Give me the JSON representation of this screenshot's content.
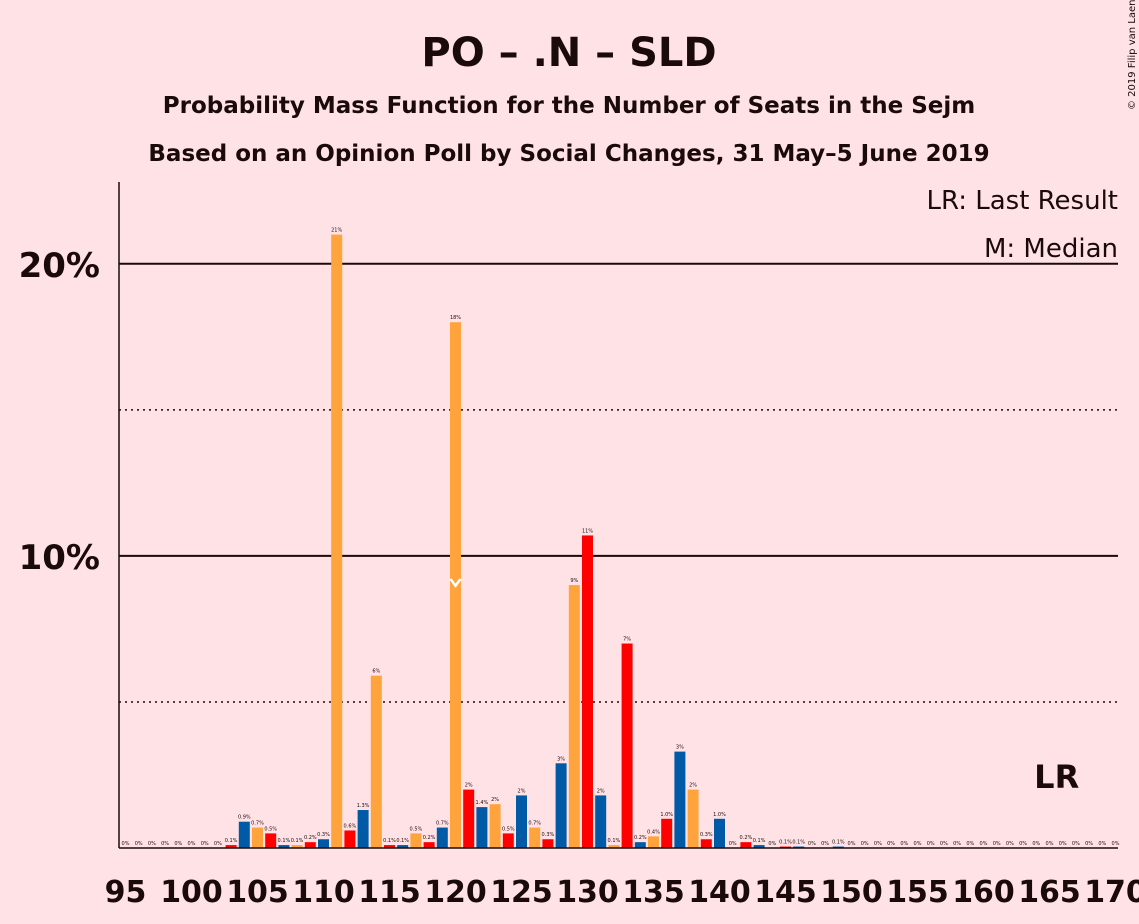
{
  "chart_data": {
    "type": "bar",
    "title": "PO – .N – SLD",
    "subtitle": "Probability Mass Function for the Number of Seats in the Sejm",
    "subtitle2": "Based on an Opinion Poll by Social Changes, 31 May–5 June 2019",
    "copyright": "© 2019 Filip van Laenen",
    "legend": [
      "LR: Last Result",
      "M: Median"
    ],
    "last_result_label": "LR",
    "last_result_seat": 166,
    "median_seat": 120,
    "ylim": [
      0,
      22.8
    ],
    "yticks": [
      {
        "value": 10,
        "label": "10%"
      },
      {
        "value": 20,
        "label": "20%"
      }
    ],
    "dotted_gridlines": [
      5,
      15
    ],
    "xlim": [
      95,
      170
    ],
    "xticks": [
      95,
      100,
      105,
      110,
      115,
      120,
      125,
      130,
      135,
      140,
      145,
      150,
      155,
      160,
      165,
      170
    ],
    "colors": {
      "blue": "#005AA6",
      "orange": "#FFA33D",
      "red": "#FF0000",
      "median_mark": "#FFFFFF",
      "background": "#FFE2E6"
    },
    "color_cycle": [
      "blue",
      "orange",
      "red"
    ],
    "bars": [
      {
        "seats": 95,
        "value": 0,
        "label": "0%"
      },
      {
        "seats": 96,
        "value": 0,
        "label": "0%"
      },
      {
        "seats": 97,
        "value": 0,
        "label": "0%"
      },
      {
        "seats": 98,
        "value": 0,
        "label": "0%"
      },
      {
        "seats": 99,
        "value": 0,
        "label": "0%"
      },
      {
        "seats": 100,
        "value": 0,
        "label": "0%"
      },
      {
        "seats": 101,
        "value": 0,
        "label": "0%"
      },
      {
        "seats": 102,
        "value": 0,
        "label": "0%"
      },
      {
        "seats": 103,
        "value": 0.1,
        "label": "0.1%"
      },
      {
        "seats": 104,
        "value": 0.9,
        "label": "0.9%"
      },
      {
        "seats": 105,
        "value": 0.7,
        "label": "0.7%"
      },
      {
        "seats": 106,
        "value": 0.5,
        "label": "0.5%"
      },
      {
        "seats": 107,
        "value": 0.1,
        "label": "0.1%"
      },
      {
        "seats": 108,
        "value": 0.1,
        "label": "0.1%"
      },
      {
        "seats": 109,
        "value": 0.2,
        "label": "0.2%"
      },
      {
        "seats": 110,
        "value": 0.3,
        "label": "0.3%"
      },
      {
        "seats": 111,
        "value": 21,
        "label": "21%"
      },
      {
        "seats": 112,
        "value": 0.6,
        "label": "0.6%"
      },
      {
        "seats": 113,
        "value": 1.3,
        "label": "1.3%"
      },
      {
        "seats": 114,
        "value": 5.9,
        "label": "6%"
      },
      {
        "seats": 115,
        "value": 0.1,
        "label": "0.1%"
      },
      {
        "seats": 116,
        "value": 0.1,
        "label": "0.1%"
      },
      {
        "seats": 117,
        "value": 0.5,
        "label": "0.5%"
      },
      {
        "seats": 118,
        "value": 0.2,
        "label": "0.2%"
      },
      {
        "seats": 119,
        "value": 0.7,
        "label": "0.7%"
      },
      {
        "seats": 120,
        "value": 18,
        "label": "18%"
      },
      {
        "seats": 121,
        "value": 2,
        "label": "2%"
      },
      {
        "seats": 122,
        "value": 1.4,
        "label": "1.4%"
      },
      {
        "seats": 123,
        "value": 1.5,
        "label": "2%"
      },
      {
        "seats": 124,
        "value": 0.5,
        "label": "0.5%"
      },
      {
        "seats": 125,
        "value": 1.8,
        "label": "2%"
      },
      {
        "seats": 126,
        "value": 0.7,
        "label": "0.7%"
      },
      {
        "seats": 127,
        "value": 0.3,
        "label": "0.3%"
      },
      {
        "seats": 128,
        "value": 2.9,
        "label": "3%"
      },
      {
        "seats": 129,
        "value": 9,
        "label": "9%"
      },
      {
        "seats": 130,
        "value": 10.7,
        "label": "11%"
      },
      {
        "seats": 131,
        "value": 1.8,
        "label": "2%"
      },
      {
        "seats": 132,
        "value": 0.1,
        "label": "0.1%"
      },
      {
        "seats": 133,
        "value": 7,
        "label": "7%"
      },
      {
        "seats": 134,
        "value": 0.2,
        "label": "0.2%"
      },
      {
        "seats": 135,
        "value": 0.4,
        "label": "0.4%"
      },
      {
        "seats": 136,
        "value": 1,
        "label": "1.0%"
      },
      {
        "seats": 137,
        "value": 3.3,
        "label": "3%"
      },
      {
        "seats": 138,
        "value": 2,
        "label": "2%"
      },
      {
        "seats": 139,
        "value": 0.3,
        "label": "0.3%"
      },
      {
        "seats": 140,
        "value": 1,
        "label": "1.0%"
      },
      {
        "seats": 141,
        "value": 0,
        "label": "0%"
      },
      {
        "seats": 142,
        "value": 0.2,
        "label": "0.2%"
      },
      {
        "seats": 143,
        "value": 0.1,
        "label": "0.1%"
      },
      {
        "seats": 144,
        "value": 0,
        "label": "0%"
      },
      {
        "seats": 145,
        "value": 0.05,
        "label": "0.1%"
      },
      {
        "seats": 146,
        "value": 0.05,
        "label": "0.1%"
      },
      {
        "seats": 147,
        "value": 0,
        "label": "0%"
      },
      {
        "seats": 148,
        "value": 0,
        "label": "0%"
      },
      {
        "seats": 149,
        "value": 0.05,
        "label": "0.1%"
      },
      {
        "seats": 150,
        "value": 0,
        "label": "0%"
      },
      {
        "seats": 151,
        "value": 0,
        "label": "0%"
      },
      {
        "seats": 152,
        "value": 0,
        "label": "0%"
      },
      {
        "seats": 153,
        "value": 0,
        "label": "0%"
      },
      {
        "seats": 154,
        "value": 0,
        "label": "0%"
      },
      {
        "seats": 155,
        "value": 0,
        "label": "0%"
      },
      {
        "seats": 156,
        "value": 0,
        "label": "0%"
      },
      {
        "seats": 157,
        "value": 0,
        "label": "0%"
      },
      {
        "seats": 158,
        "value": 0,
        "label": "0%"
      },
      {
        "seats": 159,
        "value": 0,
        "label": "0%"
      },
      {
        "seats": 160,
        "value": 0,
        "label": "0%"
      },
      {
        "seats": 161,
        "value": 0,
        "label": "0%"
      },
      {
        "seats": 162,
        "value": 0,
        "label": "0%"
      },
      {
        "seats": 163,
        "value": 0,
        "label": "0%"
      },
      {
        "seats": 164,
        "value": 0,
        "label": "0%"
      },
      {
        "seats": 165,
        "value": 0,
        "label": "0%"
      },
      {
        "seats": 166,
        "value": 0,
        "label": "0%"
      },
      {
        "seats": 167,
        "value": 0,
        "label": "0%"
      },
      {
        "seats": 168,
        "value": 0,
        "label": "0%"
      },
      {
        "seats": 169,
        "value": 0,
        "label": "0%"
      },
      {
        "seats": 170,
        "value": 0,
        "label": "0%"
      }
    ]
  }
}
